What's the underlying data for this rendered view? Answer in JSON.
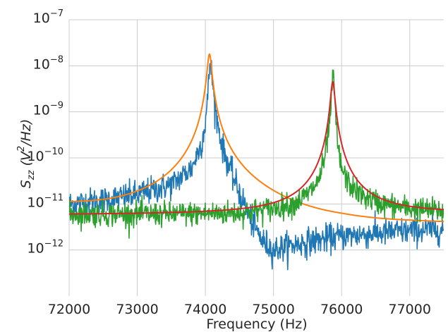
{
  "chart_data": {
    "type": "line",
    "title": "",
    "xlabel": "Frequency (Hz)",
    "ylabel": {
      "base": "S",
      "sub": "zz",
      "paren_open": " (V",
      "sup": "2",
      "rest": "/Hz)"
    },
    "xlim": [
      72000,
      77500
    ],
    "ylim": [
      1e-13,
      1e-07
    ],
    "yscale": "log",
    "grid": true,
    "legend": "none",
    "xticks": [
      72000,
      73000,
      74000,
      75000,
      76000,
      77000
    ],
    "xtick_labels": [
      "72000",
      "73000",
      "74000",
      "75000",
      "76000",
      "77000"
    ],
    "yticks": [
      1e-12,
      1e-11,
      1e-10,
      1e-09,
      1e-08,
      1e-07
    ],
    "ytick_labels": [
      {
        "base": "10",
        "exp": "−12"
      },
      {
        "base": "10",
        "exp": "−11"
      },
      {
        "base": "10",
        "exp": "−10"
      },
      {
        "base": "10",
        "exp": "−9"
      },
      {
        "base": "10",
        "exp": "−8"
      },
      {
        "base": "10",
        "exp": "−7"
      }
    ],
    "series": [
      {
        "kind": "measured",
        "color": "#1f77b4",
        "x": [
          72000,
          72500,
          73000,
          73500,
          73800,
          73950,
          74000,
          74040,
          74070,
          74100,
          74150,
          74250,
          74400,
          74550,
          74700,
          74850,
          75000,
          75200,
          75500,
          76000,
          76500,
          77000,
          77500
        ],
        "y": [
          1e-11,
          1.2e-11,
          1.6e-11,
          2.6e-11,
          6e-11,
          2.2e-10,
          6e-10,
          2.5e-09,
          1.5e-08,
          5e-09,
          1e-09,
          1.7e-10,
          4e-11,
          1.2e-11,
          3.5e-12,
          1.5e-12,
          1e-12,
          1.2e-12,
          1.5e-12,
          2e-12,
          2.3e-12,
          2.6e-12,
          2.8e-12
        ],
        "noise_dex": 0.15
      },
      {
        "kind": "fit",
        "color": "#ff7f0e",
        "f0": 74060,
        "gamma": 30,
        "peak": 1.8e-08,
        "floor_x": [
          72000,
          74000,
          74600,
          75200,
          76000,
          77000,
          77500
        ],
        "floor_y": [
          7.5e-12,
          3e-12,
          1.6e-12,
          1.3e-12,
          2e-12,
          2.6e-12,
          2.8e-12
        ]
      },
      {
        "kind": "measured",
        "color": "#2ca02c",
        "x": [
          72000,
          72500,
          73000,
          73500,
          74000,
          74500,
          75000,
          75300,
          75500,
          75650,
          75750,
          75820,
          75860,
          75880,
          75900,
          75920,
          75950,
          76000,
          76100,
          76300,
          76600,
          77000,
          77500
        ],
        "y": [
          6e-12,
          6e-12,
          6e-12,
          6e-12,
          6.2e-12,
          6.5e-12,
          8e-12,
          1e-11,
          1.6e-11,
          3e-11,
          9e-11,
          5e-10,
          3e-09,
          6e-09,
          2e-09,
          5e-10,
          1.5e-10,
          6e-11,
          2.8e-11,
          1.5e-11,
          1e-11,
          8e-12,
          7e-12
        ],
        "noise_dex": 0.13
      },
      {
        "kind": "fit",
        "color": "#d62728",
        "f0": 75870,
        "gamma": 28,
        "peak": 4.5e-09,
        "floor_x": [
          72000,
          77500
        ],
        "floor_y": [
          5.8e-12,
          6.2e-12
        ]
      }
    ]
  }
}
